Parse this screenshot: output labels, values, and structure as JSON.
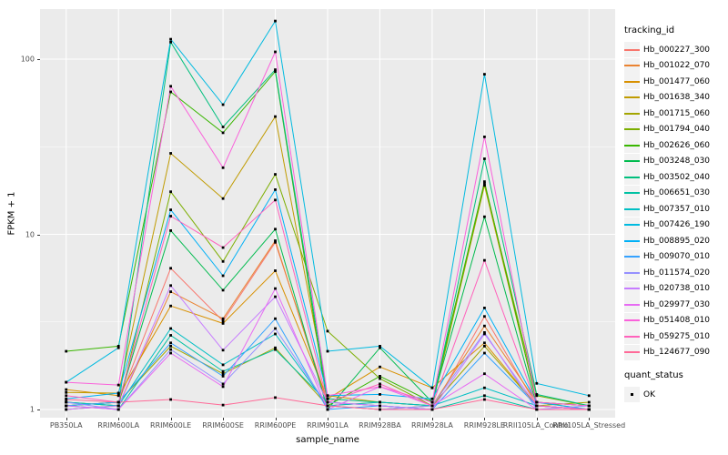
{
  "colors": {
    "panel_bg": "#EBEBEB",
    "grid": "#FFFFFF",
    "tick_text": "#4D4D4D",
    "axis_title_text": "#000000",
    "legend_key_bg": "#F2F2F2",
    "point_color": "#000000"
  },
  "legend": {
    "tracking_title": "tracking_id",
    "quant_title": "quant_status",
    "quant_label": "OK"
  },
  "chart_data": {
    "type": "line",
    "title": "",
    "xlabel": "sample_name",
    "ylabel": "FPKM + 1",
    "y_scale": "log10",
    "y_ticks": [
      1,
      10,
      100
    ],
    "y_minor_gridlines": [
      3.1623,
      31.623
    ],
    "ylim": [
      0.9,
      195
    ],
    "grid": true,
    "legend_position": "right",
    "point_shape": "filled-black-square",
    "x_categories": [
      "PB350LA",
      "RRIM600LA",
      "RRIM600LE",
      "RRIM600SE",
      "RRIM600PE",
      "RRIM901LA",
      "RRIM928BA",
      "RRIM928LA",
      "RRIM928LE",
      "RRII105LA_Control",
      "RRII105LA_Stressed"
    ],
    "series": [
      {
        "name": "Hb_000227_300",
        "color": "#F8766D",
        "values": [
          1.05,
          1.1,
          6.4,
          3.2,
          9.0,
          1.1,
          1.05,
          1.0,
          3.4,
          1.05,
          1.0
        ]
      },
      {
        "name": "Hb_001022_070",
        "color": "#EA8331",
        "values": [
          1.1,
          1.05,
          4.7,
          3.3,
          9.2,
          1.05,
          1.1,
          1.05,
          3.0,
          1.1,
          1.0
        ]
      },
      {
        "name": "Hb_001477_060",
        "color": "#D89000",
        "values": [
          1.3,
          1.2,
          3.9,
          3.1,
          6.2,
          1.15,
          1.75,
          1.33,
          2.4,
          1.05,
          1.0
        ]
      },
      {
        "name": "Hb_001638_340",
        "color": "#C09B00",
        "values": [
          1.25,
          1.24,
          29,
          16,
          47,
          1.2,
          1.1,
          1.05,
          19,
          1.1,
          1.05
        ]
      },
      {
        "name": "Hb_001715_060",
        "color": "#A3A500",
        "values": [
          1.05,
          1.1,
          2.3,
          1.6,
          2.25,
          1.05,
          1.0,
          1.05,
          2.3,
          1.05,
          1.1
        ]
      },
      {
        "name": "Hb_001794_040",
        "color": "#7CAE00",
        "values": [
          1.0,
          1.05,
          17.5,
          7.0,
          22,
          2.8,
          1.5,
          1.05,
          19.5,
          1.2,
          1.05
        ]
      },
      {
        "name": "Hb_002626_060",
        "color": "#39B600",
        "values": [
          2.15,
          2.3,
          65,
          38,
          85,
          1.05,
          1.55,
          1.1,
          20,
          1.1,
          1.05
        ]
      },
      {
        "name": "Hb_003248_030",
        "color": "#00BB4E",
        "values": [
          1.05,
          1.1,
          10.5,
          4.8,
          10.7,
          1.0,
          2.25,
          1.1,
          12.6,
          1.05,
          1.0
        ]
      },
      {
        "name": "Hb_003502_040",
        "color": "#00BF7D",
        "values": [
          1.1,
          1.05,
          125,
          41,
          87,
          1.15,
          1.1,
          1.05,
          27,
          1.22,
          1.05
        ]
      },
      {
        "name": "Hb_006651_030",
        "color": "#00C1A3",
        "values": [
          1.05,
          1.0,
          2.65,
          1.65,
          2.2,
          1.1,
          1.05,
          1.0,
          1.2,
          1.0,
          1.0
        ]
      },
      {
        "name": "Hb_007357_010",
        "color": "#00BFC4",
        "values": [
          1.1,
          1.05,
          2.9,
          1.8,
          2.7,
          1.05,
          1.1,
          1.05,
          1.33,
          1.05,
          1.0
        ]
      },
      {
        "name": "Hb_007426_190",
        "color": "#00BAE0",
        "values": [
          1.43,
          2.25,
          130,
          55,
          165,
          2.15,
          2.3,
          1.33,
          82,
          1.41,
          1.2
        ]
      },
      {
        "name": "Hb_008895_020",
        "color": "#00B0F6",
        "values": [
          1.15,
          1.24,
          13.8,
          5.8,
          18,
          1.2,
          1.22,
          1.15,
          3.8,
          1.1,
          1.0
        ]
      },
      {
        "name": "Hb_009070_010",
        "color": "#35A2FF",
        "values": [
          1.05,
          1.1,
          2.4,
          1.55,
          3.3,
          1.0,
          1.05,
          1.0,
          2.1,
          1.05,
          1.0
        ]
      },
      {
        "name": "Hb_011574_020",
        "color": "#9590FF",
        "values": [
          1.1,
          1.0,
          2.2,
          1.4,
          2.9,
          1.05,
          1.0,
          1.05,
          2.75,
          1.0,
          1.05
        ]
      },
      {
        "name": "Hb_020738_010",
        "color": "#C77CFF",
        "values": [
          1.0,
          1.05,
          5.1,
          2.18,
          4.4,
          1.1,
          1.05,
          1.0,
          2.7,
          1.05,
          1.0
        ]
      },
      {
        "name": "Hb_029977_030",
        "color": "#E76BF3",
        "values": [
          1.05,
          1.0,
          2.1,
          1.35,
          4.9,
          1.0,
          1.35,
          1.05,
          1.6,
          1.0,
          1.0
        ]
      },
      {
        "name": "Hb_051408_010",
        "color": "#FA62DB",
        "values": [
          1.43,
          1.38,
          70,
          24,
          110,
          1.2,
          1.35,
          1.1,
          36,
          1.1,
          1.05
        ]
      },
      {
        "name": "Hb_059275_010",
        "color": "#FF62BC",
        "values": [
          1.2,
          1.1,
          12.7,
          8.4,
          15.7,
          1.1,
          1.4,
          1.05,
          7.1,
          1.05,
          1.0
        ]
      },
      {
        "name": "Hb_124677_090",
        "color": "#FF6A98",
        "values": [
          1.14,
          1.1,
          1.14,
          1.06,
          1.17,
          1.05,
          1.0,
          1.0,
          1.14,
          1.0,
          1.0
        ]
      }
    ]
  }
}
